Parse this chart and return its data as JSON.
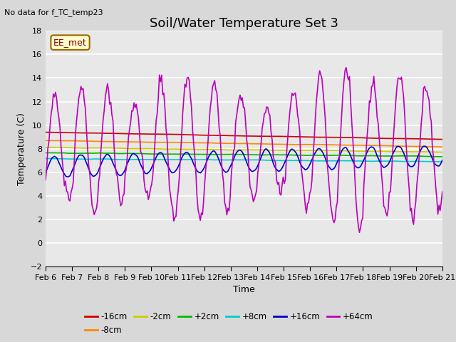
{
  "title": "Soil/Water Temperature Set 3",
  "xlabel": "Time",
  "ylabel": "Temperature (C)",
  "no_data_text": "No data for f_TC_temp23",
  "station_label": "EE_met",
  "ylim": [
    -2,
    18
  ],
  "yticks": [
    -2,
    0,
    2,
    4,
    6,
    8,
    10,
    12,
    14,
    16,
    18
  ],
  "x_tick_labels": [
    "Feb 6",
    "Feb 7",
    "Feb 8",
    "Feb 9",
    "Feb 10",
    "Feb 11",
    "Feb 12",
    "Feb 13",
    "Feb 14",
    "Feb 15",
    "Feb 16",
    "Feb 17",
    "Feb 18",
    "Feb 19",
    "Feb 20",
    "Feb 21"
  ],
  "series": [
    {
      "label": "-16cm",
      "color": "#cc0000"
    },
    {
      "label": "-8cm",
      "color": "#ff8800"
    },
    {
      "label": "-2cm",
      "color": "#cccc00"
    },
    {
      "label": "+2cm",
      "color": "#00bb00"
    },
    {
      "label": "+8cm",
      "color": "#00cccc"
    },
    {
      "label": "+16cm",
      "color": "#0000cc"
    },
    {
      "label": "+64cm",
      "color": "#bb00bb"
    }
  ],
  "bg_color": "#d8d8d8",
  "plot_bg_color": "#e8e8e8",
  "grid_color": "#ffffff",
  "title_fontsize": 13,
  "label_fontsize": 9,
  "tick_fontsize": 8
}
